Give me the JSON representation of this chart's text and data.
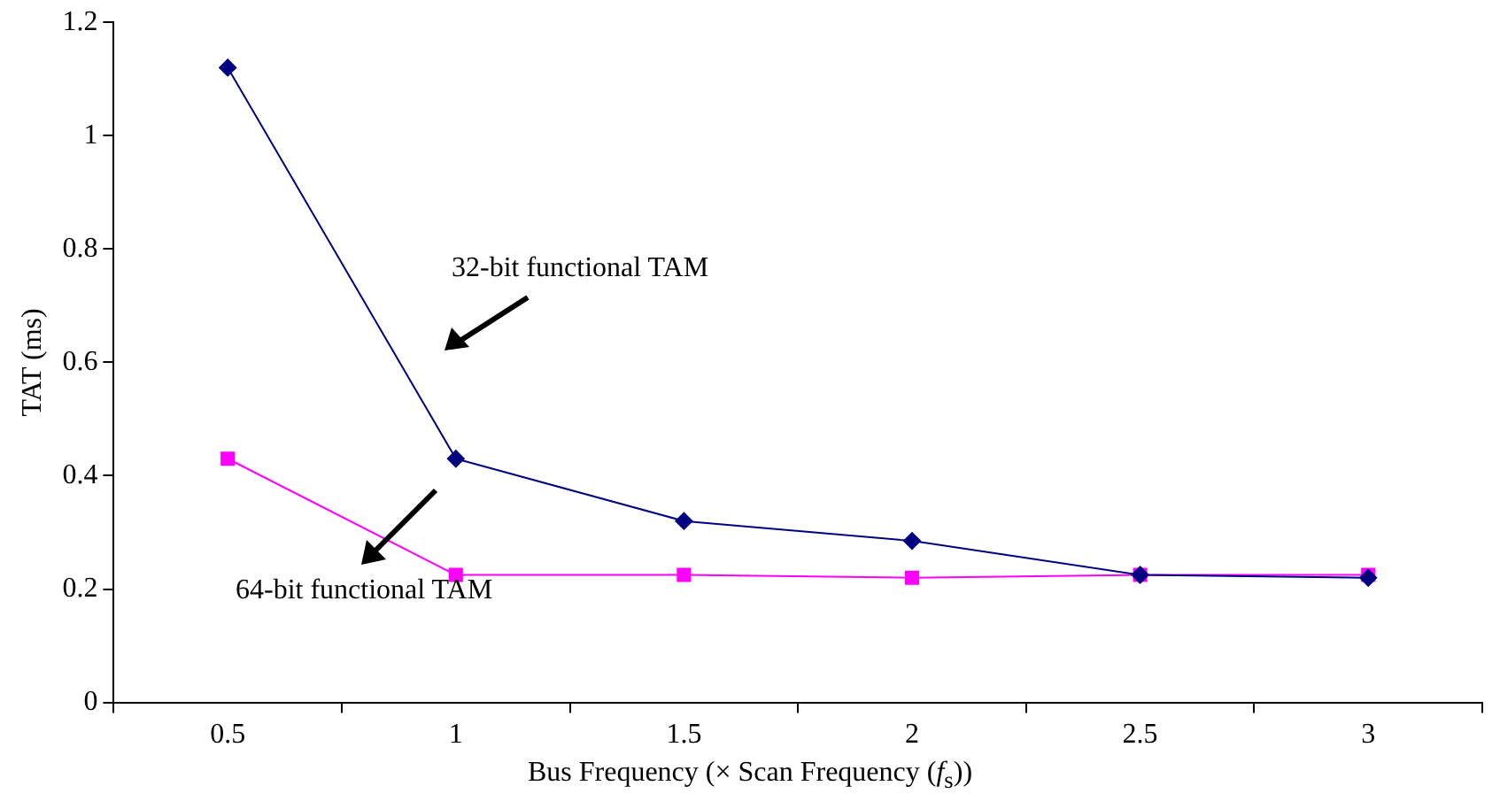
{
  "chart_data": {
    "type": "line",
    "xlabel": "Bus Frequency (× Scan Frequency (f$_{s}$))",
    "ylabel": "TAT (ms)",
    "categories": [
      "0.5",
      "1",
      "1.5",
      "2",
      "2.5",
      "3"
    ],
    "series": [
      {
        "color": "#000080",
        "marker": "diamond",
        "values": [
          1.12,
          0.43,
          0.32,
          0.285,
          0.225,
          0.22
        ]
      },
      {
        "color": "#ff00ff",
        "marker": "square",
        "values": [
          0.43,
          0.225,
          0.225,
          0.22,
          0.225,
          0.225
        ]
      }
    ],
    "ylim": [
      0,
      1.2
    ],
    "yticks": [
      0,
      0.2,
      0.4,
      0.6,
      0.8,
      1,
      1.2
    ],
    "grid": false,
    "legend": false,
    "annotations": [
      "32-bit functional TAM",
      "64-bit functional TAM"
    ]
  }
}
